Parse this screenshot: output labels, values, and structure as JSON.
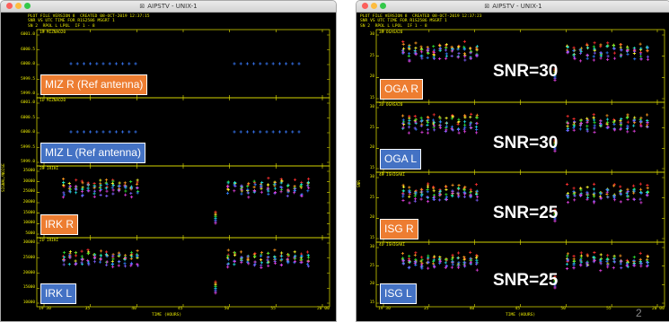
{
  "left_window": {
    "title": "AIPSTV - UNIX-1",
    "header_lines": [
      "PLOT FILE VERSION 8  CREATED 08-OCT-2019 12:37:15",
      "SNR VS UTC TIME FOR R1S2586 MSGRT 1",
      "SN 2  RPOL L LPOL  IF 1 - 8"
    ],
    "x_axis": {
      "title": "TIME (HOURS)",
      "ticks": [
        "19 30",
        "35",
        "40",
        "45",
        "50",
        "55",
        "20 00"
      ]
    },
    "y_axis_title": "SIGNAL/NOISE",
    "panels": [
      {
        "name": "1R MIZNAO20",
        "y_ticks": [
          "6001.0",
          "6000.5",
          "6000.0",
          "5999.5",
          "5999.0"
        ],
        "label": "MIZ R (Ref antenna)",
        "label_color": "orange"
      },
      {
        "name": "1L MIZNAO20",
        "y_ticks": [
          "6001.0",
          "6000.5",
          "6000.0",
          "5999.5",
          "5999.0"
        ],
        "label": "MIZ L (Ref antenna)",
        "label_color": "blue"
      },
      {
        "name": "2R IRIKI",
        "y_ticks": [
          "35000",
          "30000",
          "25000",
          "20000",
          "15000",
          "10000",
          "5000"
        ],
        "label": "IRK R",
        "label_color": "orange"
      },
      {
        "name": "2L IRIKI",
        "y_ticks": [
          "30000",
          "25000",
          "20000",
          "15000",
          "10000"
        ],
        "label": "IRK L",
        "label_color": "blue"
      }
    ]
  },
  "right_window": {
    "title": "AIPSTV - UNIX-1",
    "header_lines": [
      "PLOT FILE VERSION 8  CREATED 08-OCT-2019 12:37:23",
      "SNR VS UTC TIME FOR R1S2586 MSGRT 1",
      "SN 2  RPOL L LPOL  IF 1 - 8"
    ],
    "x_axis": {
      "title": "TIME (HOURS)",
      "ticks": [
        "19 30",
        "35",
        "40",
        "45",
        "50",
        "55",
        "20 00"
      ]
    },
    "y_axis_title": "SNR",
    "panels": [
      {
        "name": "3R OGASA20",
        "y_ticks": [
          "30",
          "25",
          "20",
          "15"
        ],
        "label": "OGA R",
        "label_color": "orange",
        "snr": "SNR=30"
      },
      {
        "name": "3L OGASA20",
        "y_ticks": [
          "30",
          "25",
          "20",
          "15"
        ],
        "label": "OGA L",
        "label_color": "blue",
        "snr": "SNR=30"
      },
      {
        "name": "4R ISHIGAKI",
        "y_ticks": [
          "30",
          "25",
          "20",
          "15"
        ],
        "label": "ISG R",
        "label_color": "orange",
        "snr": "SNR=25"
      },
      {
        "name": "4L ISHIGAKI",
        "y_ticks": [
          "30",
          "25",
          "20",
          "15"
        ],
        "label": "ISG L",
        "label_color": "blue",
        "snr": "SNR=25"
      }
    ]
  },
  "page_number": "2",
  "colors": {
    "plot_bg": "#000000",
    "text": "#e8e800",
    "orange": "#ed7d31",
    "blue": "#4472c4"
  }
}
